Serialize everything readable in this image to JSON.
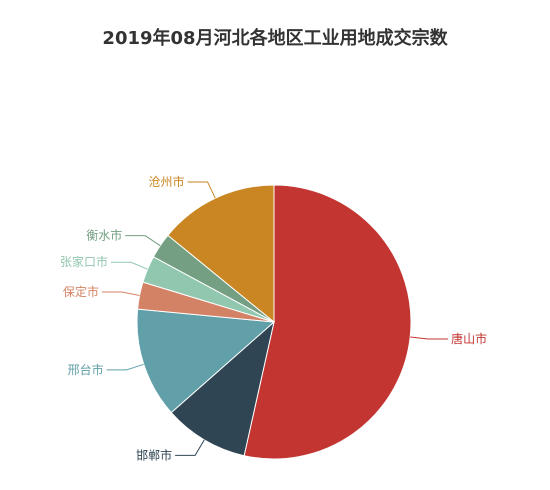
{
  "chart_data": {
    "type": "pie",
    "title": "2019年08月河北各地区工业用地成交宗数",
    "slices": [
      {
        "label": "唐山市",
        "value": 53.5,
        "color": "#c23531"
      },
      {
        "label": "邯郸市",
        "value": 10.0,
        "color": "#2f4554"
      },
      {
        "label": "邢台市",
        "value": 13.0,
        "color": "#61a0a8"
      },
      {
        "label": "保定市",
        "value": 3.2,
        "color": "#d48265"
      },
      {
        "label": "张家口市",
        "value": 3.2,
        "color": "#91c7ae"
      },
      {
        "label": "衡水市",
        "value": 3.0,
        "color": "#749f83"
      },
      {
        "label": "沧州市",
        "value": 14.1,
        "color": "#ca8622"
      }
    ]
  }
}
